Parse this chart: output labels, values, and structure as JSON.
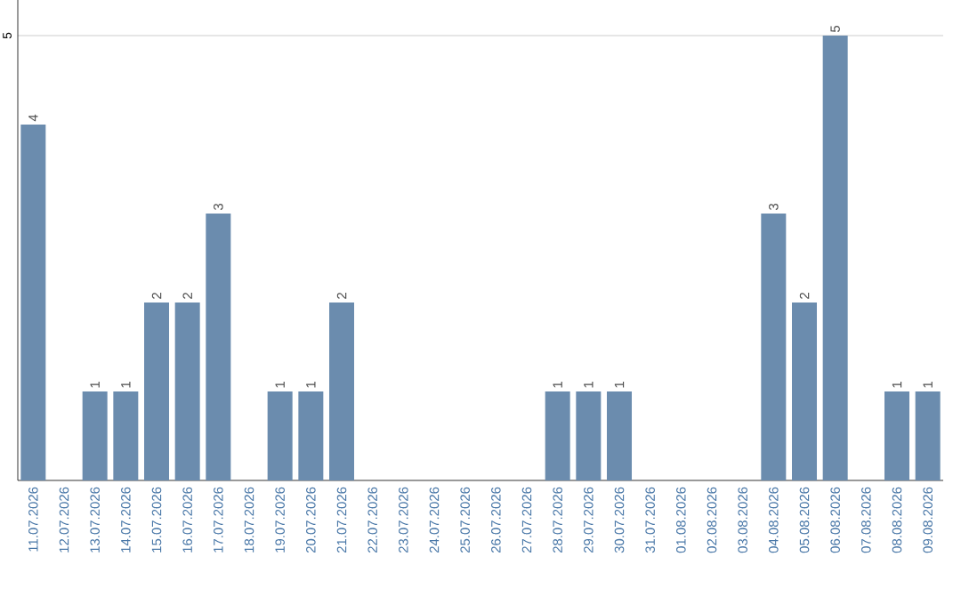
{
  "chart_data": {
    "type": "bar",
    "categories": [
      "11.07.2026",
      "12.07.2026",
      "13.07.2026",
      "14.07.2026",
      "15.07.2026",
      "16.07.2026",
      "17.07.2026",
      "18.07.2026",
      "19.07.2026",
      "20.07.2026",
      "21.07.2026",
      "22.07.2026",
      "23.07.2026",
      "24.07.2026",
      "25.07.2026",
      "26.07.2026",
      "27.07.2026",
      "28.07.2026",
      "29.07.2026",
      "30.07.2026",
      "31.07.2026",
      "01.08.2026",
      "02.08.2026",
      "03.08.2026",
      "04.08.2026",
      "05.08.2026",
      "06.08.2026",
      "07.08.2026",
      "08.08.2026",
      "09.08.2026"
    ],
    "values": [
      4,
      0,
      1,
      1,
      2,
      2,
      3,
      0,
      1,
      1,
      2,
      0,
      0,
      0,
      0,
      0,
      0,
      1,
      1,
      1,
      0,
      0,
      0,
      0,
      3,
      2,
      5,
      0,
      1,
      1
    ],
    "value_labels": [
      "4",
      null,
      "1",
      "1",
      "2",
      "2",
      "3",
      null,
      "1",
      "1",
      "2",
      null,
      null,
      null,
      null,
      null,
      null,
      "1",
      "1",
      "1",
      null,
      null,
      null,
      null,
      "3",
      "2",
      "5",
      null,
      "1",
      "1"
    ],
    "color": "#6b8cae",
    "ylim": [
      0,
      5.4
    ],
    "yticks": [
      5
    ],
    "grid": "y"
  }
}
